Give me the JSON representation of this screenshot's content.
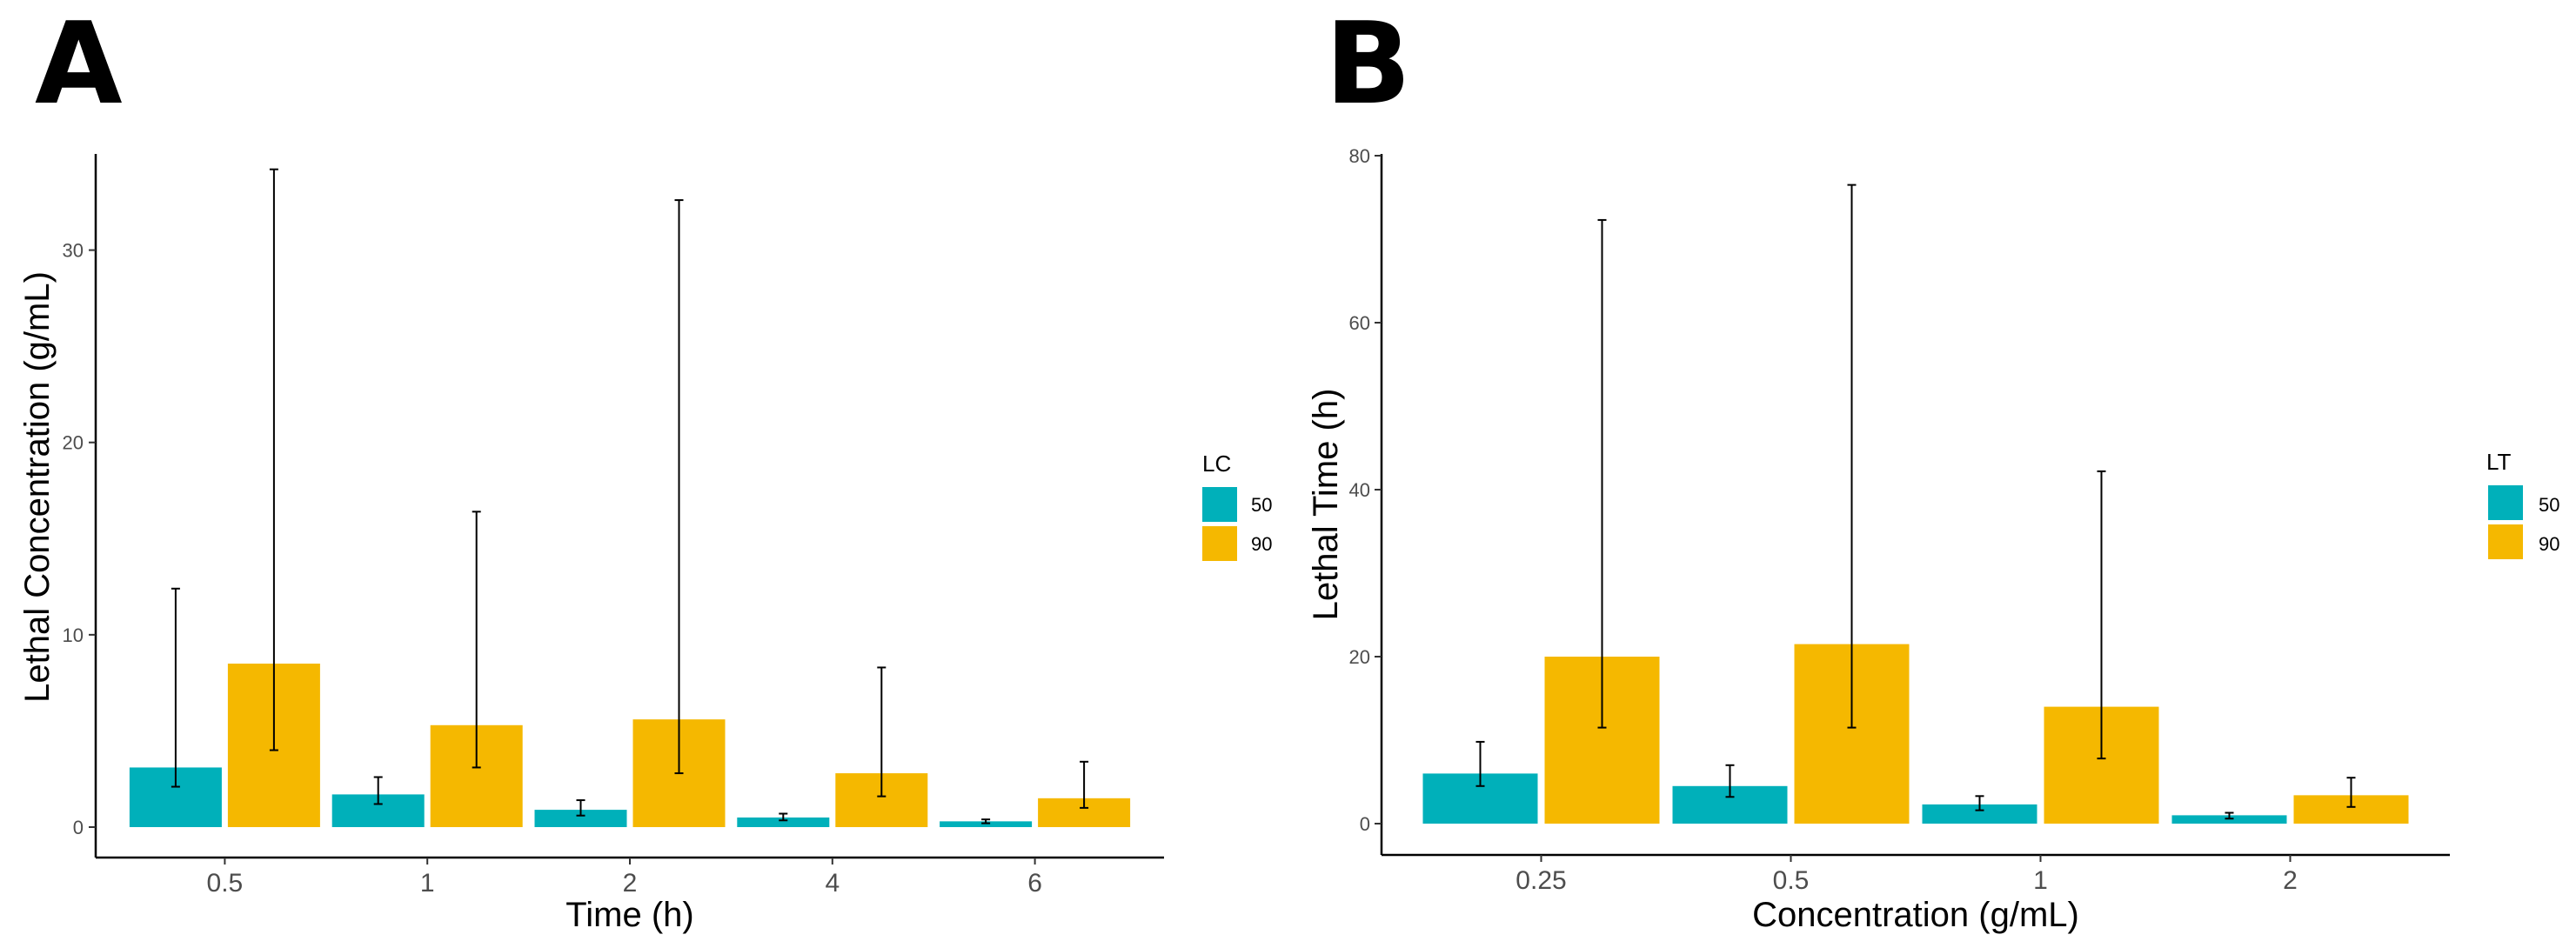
{
  "colors": {
    "series_50": "#00B0BA",
    "series_90": "#F5B800",
    "axis": "#000000",
    "error_bar": "#000000"
  },
  "chart_data": [
    {
      "panel": "A",
      "type": "bar",
      "title": "",
      "xlabel": "Time (h)",
      "ylabel": "Lethal Concentration (g/mL)",
      "categories": [
        "0.5",
        "1",
        "2",
        "4",
        "6"
      ],
      "ylim": [
        0,
        35
      ],
      "yticks": [
        0,
        10,
        20,
        30
      ],
      "legend_title": "LC",
      "legend_position": "right",
      "series": [
        {
          "name": "50",
          "values": [
            3.1,
            1.7,
            0.9,
            0.5,
            0.3
          ],
          "lower": [
            2.1,
            1.2,
            0.6,
            0.35,
            0.2
          ],
          "upper": [
            12.4,
            2.6,
            1.4,
            0.7,
            0.4
          ]
        },
        {
          "name": "90",
          "values": [
            8.5,
            5.3,
            5.6,
            2.8,
            1.5
          ],
          "lower": [
            4.0,
            3.1,
            2.8,
            1.6,
            1.0
          ],
          "upper": [
            34.2,
            16.4,
            32.6,
            8.3,
            3.4
          ]
        }
      ]
    },
    {
      "panel": "B",
      "type": "bar",
      "title": "",
      "xlabel": "Concentration (g/mL)",
      "ylabel": "Lethal Time (h)",
      "categories": [
        "0.25",
        "0.5",
        "1",
        "2"
      ],
      "ylim": [
        0,
        80
      ],
      "yticks": [
        0,
        20,
        40,
        60,
        80
      ],
      "legend_title": "LT",
      "legend_position": "right",
      "series": [
        {
          "name": "50",
          "values": [
            6.0,
            4.5,
            2.3,
            1.0
          ],
          "lower": [
            4.5,
            3.2,
            1.6,
            0.6
          ],
          "upper": [
            9.8,
            7.0,
            3.3,
            1.3
          ]
        },
        {
          "name": "90",
          "values": [
            20.0,
            21.5,
            14.0,
            3.4
          ],
          "lower": [
            11.5,
            11.5,
            7.8,
            2.0
          ],
          "upper": [
            72.3,
            76.5,
            42.2,
            5.5
          ]
        }
      ]
    }
  ]
}
